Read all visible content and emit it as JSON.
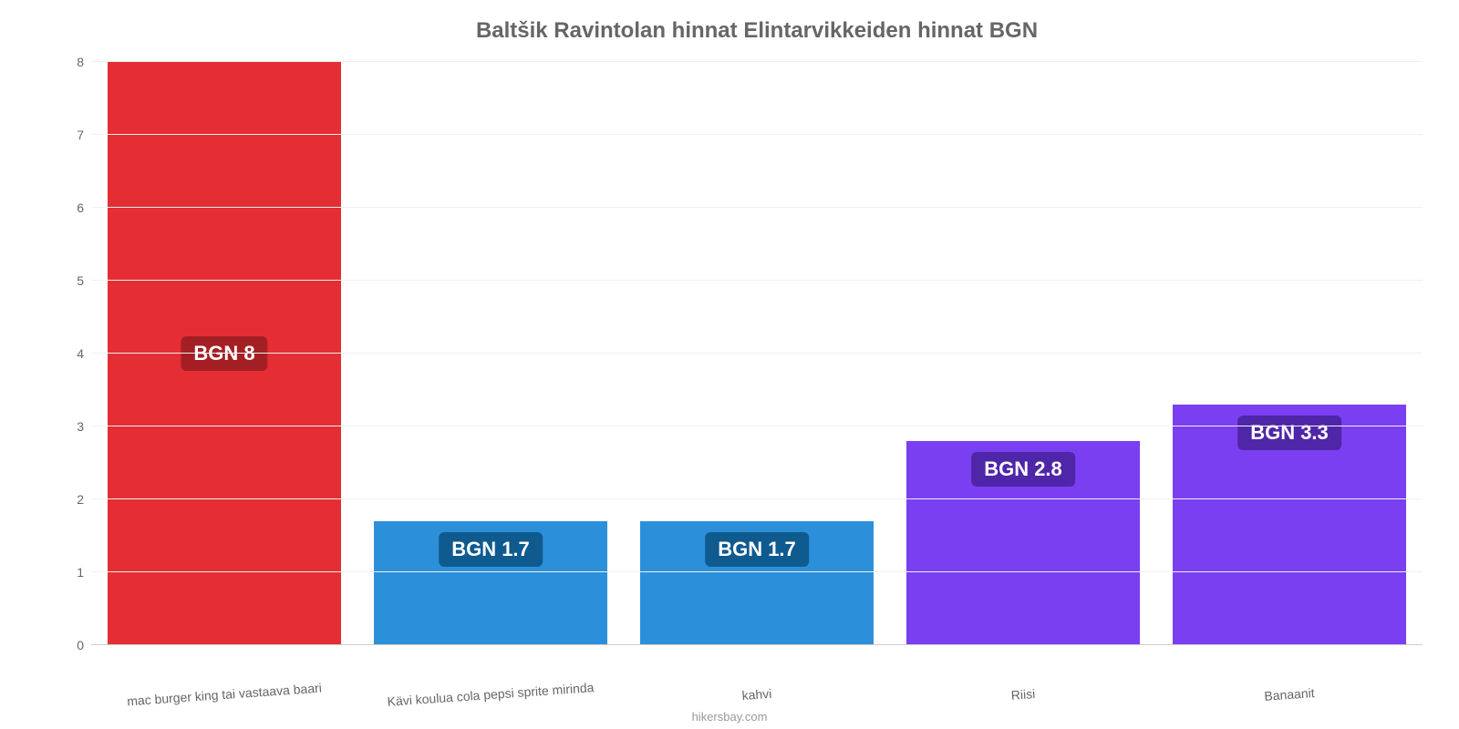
{
  "chart": {
    "type": "bar",
    "title": "Baltšik Ravintolan hinnat Elintarvikkeiden hinnat BGN",
    "title_color": "#666666",
    "title_fontsize": 24,
    "background_color": "#ffffff",
    "grid_color": "#f0f0f0",
    "axis_text_color": "#666666",
    "axis_fontsize": 14,
    "credit": "hikersbay.com",
    "credit_color": "#999999",
    "ylim": [
      0,
      8
    ],
    "yticks": [
      0,
      1,
      2,
      3,
      4,
      5,
      6,
      7,
      8
    ],
    "bar_width_ratio": 0.88,
    "label_fontsize": 22,
    "label_text_color": "#ffffff",
    "label_radius": 6,
    "categories": [
      "mac burger king tai vastaava baari",
      "Kävi koulua cola pepsi sprite mirinda",
      "kahvi",
      "Riisi",
      "Banaanit"
    ],
    "bars": [
      {
        "value": 8.0,
        "display": "BGN 8",
        "fill": "#e42e34",
        "label_bg": "#a41f24",
        "label_pos": "middle"
      },
      {
        "value": 1.7,
        "display": "BGN 1.7",
        "fill": "#2b90d9",
        "label_bg": "#0f5a8f",
        "label_pos": "top-out"
      },
      {
        "value": 1.7,
        "display": "BGN 1.7",
        "fill": "#2b90d9",
        "label_bg": "#0f5a8f",
        "label_pos": "top-out"
      },
      {
        "value": 2.8,
        "display": "BGN 2.8",
        "fill": "#7b3ff2",
        "label_bg": "#4f26a8",
        "label_pos": "top-out"
      },
      {
        "value": 3.3,
        "display": "BGN 3.3",
        "fill": "#7b3ff2",
        "label_bg": "#4f26a8",
        "label_pos": "top-out"
      }
    ]
  }
}
